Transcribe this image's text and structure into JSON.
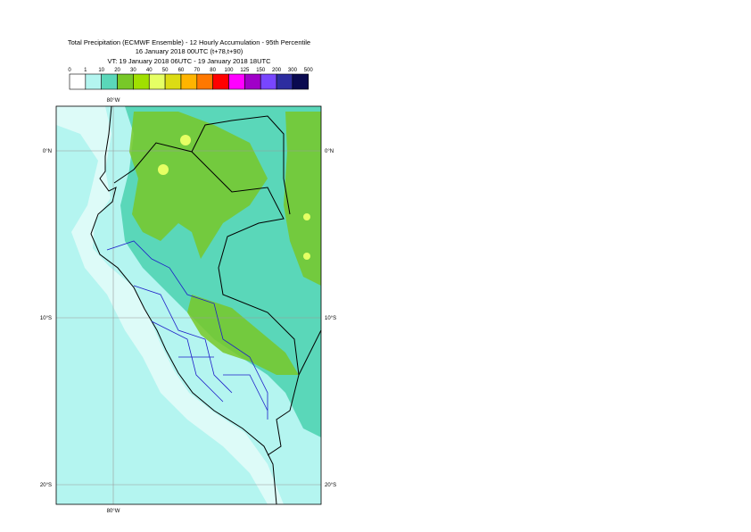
{
  "header": {
    "lines": [
      "Total Precipitation (ECMWF Ensemble) - 12 Hourly Accumulation - 95th Percentile",
      "16 January 2018 00UTC (t+78,t+90)",
      "VT: 19 January 2018 06UTC - 19 January 2018 18UTC"
    ]
  },
  "legend": {
    "labels": [
      "0",
      "1",
      "10",
      "20",
      "30",
      "40",
      "50",
      "60",
      "70",
      "80",
      "100",
      "125",
      "150",
      "200",
      "300",
      "500"
    ],
    "colors": [
      "#ffffff",
      "#b4f5f0",
      "#5ad7b9",
      "#78c828",
      "#a0e000",
      "#e6ff64",
      "#dcdc14",
      "#ffb400",
      "#ff7800",
      "#ff0000",
      "#ff00ff",
      "#a000c8",
      "#7846ff",
      "#2d2da0",
      "#0a0a50"
    ]
  },
  "map": {
    "lon_top": "80°W",
    "lon_bottom": "80°W",
    "lat_left": [
      "0°N",
      "10°S",
      "20°S"
    ],
    "lat_right": [
      "0°N",
      "10°S",
      "20°S"
    ]
  }
}
